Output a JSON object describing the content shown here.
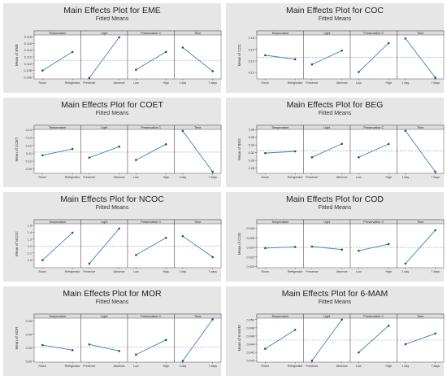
{
  "figure": {
    "colors": {
      "line": "#3f7fbf",
      "point": "#1f4e8c",
      "mean_line": "#9a9a9a",
      "panel": "#ffffff",
      "strip": "#dcdcdc",
      "card": "#e6e6e6"
    }
  },
  "chart_data": [
    {
      "type": "line",
      "title": "Main Effects Plot for EME",
      "subtitle": "Fitted Means",
      "ylabel": "Mean of EME",
      "ylim": [
        0.1055,
        0.1185
      ],
      "yticks": [
        0.106,
        0.108,
        0.11,
        0.112,
        0.114,
        0.116,
        0.118
      ],
      "ytick_labels": [
        "0.106",
        "0.108",
        "0.110",
        "0.112",
        "0.114",
        "0.116",
        "0.118"
      ],
      "overall_mean": 0.111,
      "factors": [
        {
          "name": "Temperature",
          "levels": [
            "Room",
            "Refrigerator"
          ],
          "values": [
            0.108,
            0.1135
          ]
        },
        {
          "name": "Light",
          "levels": [
            "Presence",
            "Absence"
          ],
          "values": [
            0.1058,
            0.1178
          ]
        },
        {
          "name": "Preservative C",
          "levels": [
            "Low",
            "High"
          ],
          "values": [
            0.1082,
            0.1135
          ]
        },
        {
          "name": "Time",
          "levels": [
            "1 day",
            "7 days"
          ],
          "values": [
            0.1148,
            0.1078
          ]
        }
      ]
    },
    {
      "type": "line",
      "title": "Main Effects Plot for COC",
      "subtitle": "Fitted Means",
      "ylabel": "Mean of COC",
      "ylim": [
        0.1145,
        0.1525
      ],
      "yticks": [
        0.12,
        0.13,
        0.14,
        0.15
      ],
      "ytick_labels": [
        "0.12",
        "0.13",
        "0.14",
        "0.15"
      ],
      "overall_mean": 0.133,
      "factors": [
        {
          "name": "Temperature",
          "levels": [
            "Room",
            "Refrigerator"
          ],
          "values": [
            0.135,
            0.1315
          ]
        },
        {
          "name": "Light",
          "levels": [
            "Presence",
            "Absence"
          ],
          "values": [
            0.127,
            0.139
          ]
        },
        {
          "name": "Preservative C",
          "levels": [
            "Low",
            "High"
          ],
          "values": [
            0.1205,
            0.1455
          ]
        },
        {
          "name": "Time",
          "levels": [
            "1 day",
            "7 days"
          ],
          "values": [
            0.1495,
            0.1155
          ]
        }
      ]
    },
    {
      "type": "line",
      "title": "Main Effects Plot for COET",
      "subtitle": "Fitted Means",
      "ylabel": "Mean of COET",
      "ylim": [
        0.0845,
        0.1405
      ],
      "yticks": [
        0.09,
        0.1,
        0.11,
        0.12,
        0.13,
        0.14
      ],
      "ytick_labels": [
        "0.09",
        "0.10",
        "0.11",
        "0.12",
        "0.13",
        "0.14"
      ],
      "overall_mean": 0.1115,
      "factors": [
        {
          "name": "Temperature",
          "levels": [
            "Room",
            "Refrigerator"
          ],
          "values": [
            0.1075,
            0.1155
          ]
        },
        {
          "name": "Light",
          "levels": [
            "Presence",
            "Absence"
          ],
          "values": [
            0.1045,
            0.1185
          ]
        },
        {
          "name": "Preservative C",
          "levels": [
            "Low",
            "High"
          ],
          "values": [
            0.1015,
            0.1215
          ]
        },
        {
          "name": "Time",
          "levels": [
            "1 day",
            "7 days"
          ],
          "values": [
            0.1385,
            0.0865
          ]
        }
      ]
    },
    {
      "type": "line",
      "title": "Main Effects Plot for BEG",
      "subtitle": "Fitted Means",
      "ylabel": "Mean of BEG",
      "ylim": [
        0.2665,
        0.3805
      ],
      "yticks": [
        0.28,
        0.3,
        0.32,
        0.34,
        0.36,
        0.38
      ],
      "ytick_labels": [
        "0.28",
        "0.30",
        "0.32",
        "0.34",
        "0.36",
        "0.38"
      ],
      "overall_mean": 0.325,
      "factors": [
        {
          "name": "Temperature",
          "levels": [
            "Room",
            "Refrigerator"
          ],
          "values": [
            0.319,
            0.3235
          ]
        },
        {
          "name": "Light",
          "levels": [
            "Presence",
            "Absence"
          ],
          "values": [
            0.308,
            0.343
          ]
        },
        {
          "name": "Preservative C",
          "levels": [
            "Low",
            "High"
          ],
          "values": [
            0.308,
            0.3425
          ]
        },
        {
          "name": "Time",
          "levels": [
            "1 day",
            "7 days"
          ],
          "values": [
            0.377,
            0.2705
          ]
        }
      ]
    },
    {
      "type": "line",
      "title": "Main Effects Plot for NCOC",
      "subtitle": "Fitted Means",
      "ylabel": "Mean of NCOC",
      "ylim": [
        0.885,
        1.525
      ],
      "yticks": [
        1.0,
        1.1,
        1.2,
        1.3,
        1.4,
        1.5
      ],
      "ytick_labels": [
        "1.0",
        "1.1",
        "1.2",
        "1.3",
        "1.4",
        "1.5"
      ],
      "overall_mean": 1.2,
      "factors": [
        {
          "name": "Temperature",
          "levels": [
            "Room",
            "Refrigerator"
          ],
          "values": [
            0.995,
            1.395
          ]
        },
        {
          "name": "Light",
          "levels": [
            "Presence",
            "Absence"
          ],
          "values": [
            0.945,
            1.455
          ]
        },
        {
          "name": "Preservative C",
          "levels": [
            "Low",
            "High"
          ],
          "values": [
            1.07,
            1.32
          ]
        },
        {
          "name": "Time",
          "levels": [
            "1 day",
            "7 days"
          ],
          "values": [
            1.345,
            1.04
          ]
        }
      ]
    },
    {
      "type": "line",
      "title": "Main Effects Plot for COD",
      "subtitle": "Fitted Means",
      "ylabel": "Mean of COD",
      "ylim": [
        0.01975,
        0.02895
      ],
      "yticks": [
        0.02,
        0.022,
        0.024,
        0.026,
        0.028
      ],
      "ytick_labels": [
        "0.020",
        "0.022",
        "0.024",
        "0.026",
        "0.028"
      ],
      "overall_mean": 0.024,
      "factors": [
        {
          "name": "Temperature",
          "levels": [
            "Room",
            "Refrigerator"
          ],
          "values": [
            0.02385,
            0.0241
          ]
        },
        {
          "name": "Light",
          "levels": [
            "Presence",
            "Absence"
          ],
          "values": [
            0.0242,
            0.02355
          ]
        },
        {
          "name": "Preservative C",
          "levels": [
            "Low",
            "High"
          ],
          "values": [
            0.0233,
            0.0247
          ]
        },
        {
          "name": "Time",
          "levels": [
            "1 day",
            "7 days"
          ],
          "values": [
            0.0206,
            0.0276
          ]
        }
      ]
    },
    {
      "type": "line",
      "title": "Main Effects Plot for MOR",
      "subtitle": "Fitted Means",
      "ylabel": "Mean of MOR",
      "ylim": [
        0.2965,
        0.4605
      ],
      "yticks": [
        0.3,
        0.35,
        0.4,
        0.45
      ],
      "ytick_labels": [
        "0.30",
        "0.35",
        "0.40",
        "0.45"
      ],
      "overall_mean": 0.352,
      "factors": [
        {
          "name": "Temperature",
          "levels": [
            "Room",
            "Refrigerator"
          ],
          "values": [
            0.36,
            0.341
          ]
        },
        {
          "name": "Light",
          "levels": [
            "Presence",
            "Absence"
          ],
          "values": [
            0.3625,
            0.338
          ]
        },
        {
          "name": "Preservative C",
          "levels": [
            "Low",
            "High"
          ],
          "values": [
            0.3245,
            0.379
          ]
        },
        {
          "name": "Time",
          "levels": [
            "1 day",
            "7 days"
          ],
          "values": [
            0.301,
            0.456
          ]
        }
      ]
    },
    {
      "type": "line",
      "title": "Main Effects Plot for 6-MAM",
      "subtitle": "Fitted Means",
      "ylabel": "Mean of 6-MAM",
      "ylim": [
        0.03965,
        0.05035
      ],
      "yticks": [
        0.04,
        0.042,
        0.044,
        0.046,
        0.048,
        0.05
      ],
      "ytick_labels": [
        "0.040",
        "0.042",
        "0.044",
        "0.046",
        "0.048",
        "0.050"
      ],
      "overall_mean": 0.045,
      "factors": [
        {
          "name": "Temperature",
          "levels": [
            "Room",
            "Refrigerator"
          ],
          "values": [
            0.0429,
            0.0475
          ]
        },
        {
          "name": "Light",
          "levels": [
            "Presence",
            "Absence"
          ],
          "values": [
            0.04,
            0.05
          ]
        },
        {
          "name": "Preservative C",
          "levels": [
            "Low",
            "High"
          ],
          "values": [
            0.042,
            0.0485
          ]
        },
        {
          "name": "Time",
          "levels": [
            "1 day",
            "7 days"
          ],
          "values": [
            0.044,
            0.0466
          ]
        }
      ]
    }
  ]
}
